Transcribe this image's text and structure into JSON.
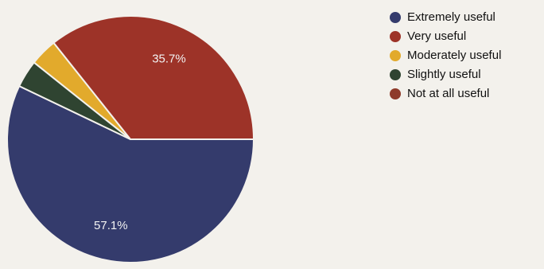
{
  "chart_data": {
    "type": "pie",
    "title": "",
    "legend_position": "right",
    "series": [
      {
        "name": "Extremely useful",
        "value": 57.1,
        "color": "#343b6c",
        "label": "57.1%"
      },
      {
        "name": "Very useful",
        "value": 35.7,
        "color": "#9d3328",
        "label": "35.7%"
      },
      {
        "name": "Moderately useful",
        "value": 3.6,
        "color": "#e2aa2c",
        "label": ""
      },
      {
        "name": "Slightly useful",
        "value": 3.6,
        "color": "#2f4431",
        "label": ""
      },
      {
        "name": "Not at all useful",
        "value": 0,
        "color": "#8e3a2a",
        "label": ""
      }
    ]
  }
}
